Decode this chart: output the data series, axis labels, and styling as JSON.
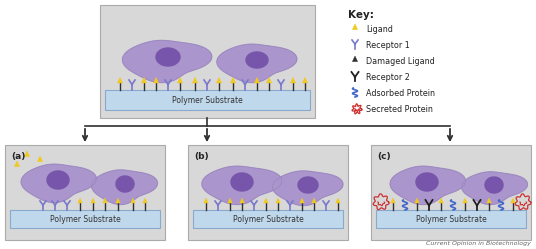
{
  "bg_color": "#d8d8d8",
  "panel_edge": "#aaaaaa",
  "substrate_color": "#c0d8ec",
  "substrate_edge": "#88aacc",
  "cell_body_color": "#aa96cc",
  "cell_nucleus_color": "#7755aa",
  "lig_color": "#f0c820",
  "lig_edge": "#c09000",
  "rec1_color": "#7878cc",
  "dmg_color": "#303030",
  "rec2_color": "#202020",
  "adp_color": "#4466cc",
  "sec_color": "#cc3030",
  "text_color": "#222222",
  "arrow_color": "#303030",
  "footer_text": "Current Opinion in Biotechnology",
  "substrate_label": "Polymer Substrate",
  "key_title": "Key:",
  "key_items": [
    "Ligand",
    "Receptor 1",
    "Damaged Ligand",
    "Receptor 2",
    "Adsorbed Protein",
    "Secreted Protein"
  ],
  "panel_labels": [
    "(a)",
    "(b)",
    "(c)"
  ]
}
